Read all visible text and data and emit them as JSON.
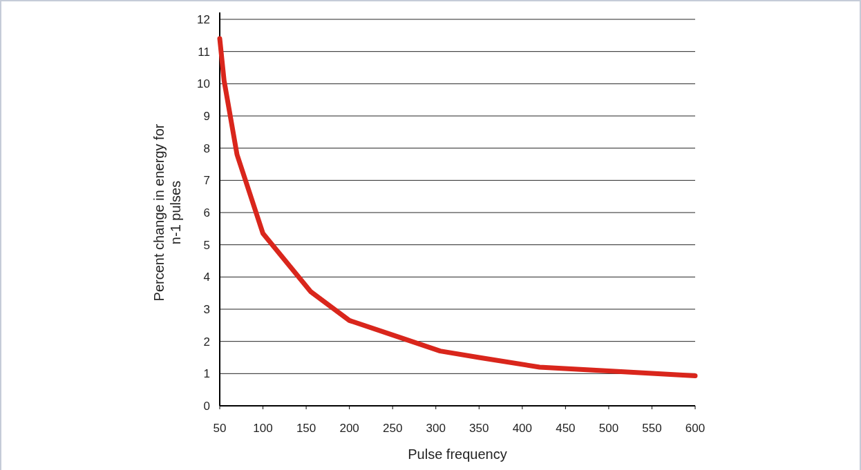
{
  "chart_data": {
    "type": "line",
    "xlabel": "Pulse frequency",
    "ylabel": "Percent change in energy for n-1 pulses",
    "x": [
      50,
      55,
      70,
      100,
      155,
      200,
      250,
      305,
      350,
      420,
      500,
      600
    ],
    "series": [
      {
        "color": "#d9261c",
        "values": [
          11.4,
          10.1,
          7.8,
          5.35,
          3.55,
          2.65,
          2.2,
          1.7,
          1.5,
          1.2,
          1.08,
          0.93
        ]
      }
    ],
    "xlim": [
      50,
      600
    ],
    "xticks": [
      50,
      100,
      150,
      200,
      250,
      300,
      350,
      400,
      450,
      500,
      550,
      600
    ],
    "ylim": [
      0,
      12
    ],
    "yticks": [
      0,
      1,
      2,
      3,
      4,
      5,
      6,
      7,
      8,
      9,
      10,
      11,
      12
    ],
    "grid": "y",
    "marker": "none",
    "line_style": "solid"
  }
}
